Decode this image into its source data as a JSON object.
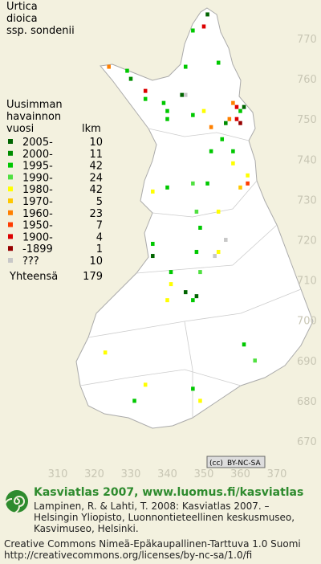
{
  "title": [
    "Urtica",
    "dioica",
    "ssp. sondenii"
  ],
  "legend": {
    "heading": [
      "Uusimman",
      "havainnon",
      "vuosi"
    ],
    "count_heading": "lkm",
    "rows": [
      {
        "label": "2005-",
        "count": 10,
        "color": "#006400",
        "squares": [
          [
            351,
            776
          ],
          [
            344,
            756
          ],
          [
            361,
            753
          ],
          [
            336,
            716
          ],
          [
            345,
            707
          ],
          [
            348,
            706
          ]
        ]
      },
      {
        "label": "2000-",
        "count": 11,
        "color": "#008c00",
        "squares": [
          [
            330,
            760
          ],
          [
            356,
            749
          ]
        ]
      },
      {
        "label": "1995-",
        "count": 42,
        "color": "#00c800",
        "squares": [
          [
            347,
            772
          ],
          [
            345,
            763
          ],
          [
            354,
            764
          ],
          [
            329,
            762
          ],
          [
            334,
            755
          ],
          [
            339,
            754
          ],
          [
            340,
            752
          ],
          [
            340,
            750
          ],
          [
            347,
            751
          ],
          [
            360,
            752
          ],
          [
            352,
            742
          ],
          [
            355,
            745
          ],
          [
            358,
            742
          ],
          [
            351,
            734
          ],
          [
            340,
            733
          ],
          [
            349,
            723
          ],
          [
            348,
            717
          ],
          [
            336,
            719
          ],
          [
            341,
            712
          ],
          [
            347,
            705
          ],
          [
            361,
            694
          ],
          [
            331,
            680
          ],
          [
            347,
            683
          ]
        ]
      },
      {
        "label": "1990-",
        "count": 24,
        "color": "#50e040",
        "squares": [
          [
            347,
            734
          ],
          [
            348,
            727
          ],
          [
            349,
            712
          ],
          [
            364,
            690
          ]
        ]
      },
      {
        "label": "1980-",
        "count": 42,
        "color": "#ffff00",
        "squares": [
          [
            350,
            752
          ],
          [
            358,
            739
          ],
          [
            362,
            736
          ],
          [
            336,
            732
          ],
          [
            354,
            727
          ],
          [
            354,
            717
          ],
          [
            341,
            709
          ],
          [
            340,
            705
          ],
          [
            323,
            692
          ],
          [
            334,
            684
          ],
          [
            349,
            680
          ]
        ]
      },
      {
        "label": "1970-",
        "count": 5,
        "color": "#ffc800",
        "squares": [
          [
            360,
            733
          ]
        ]
      },
      {
        "label": "1960-",
        "count": 23,
        "color": "#ff8000",
        "squares": [
          [
            324,
            763
          ],
          [
            358,
            754
          ],
          [
            357,
            750
          ],
          [
            352,
            748
          ]
        ]
      },
      {
        "label": "1950-",
        "count": 7,
        "color": "#ff3c00",
        "squares": [
          [
            362,
            734
          ]
        ]
      },
      {
        "label": "1900-",
        "count": 4,
        "color": "#dc0000",
        "squares": [
          [
            350,
            773
          ],
          [
            334,
            757
          ],
          [
            359,
            753
          ],
          [
            359,
            750
          ]
        ]
      },
      {
        "label": "-1899",
        "count": 1,
        "color": "#960000",
        "squares": [
          [
            360,
            749
          ]
        ]
      },
      {
        "label": "???",
        "count": 10,
        "color": "#c8c8c8",
        "squares": [
          [
            356,
            720
          ],
          [
            353,
            716
          ],
          [
            345,
            756
          ]
        ]
      }
    ],
    "total_label": "Yhteensä",
    "total": 179
  },
  "xticks": [
    310,
    320,
    330,
    340,
    350,
    360,
    370
  ],
  "yticks": [
    670,
    680,
    690,
    700,
    710,
    720,
    730,
    740,
    750,
    760,
    770
  ],
  "license_badge": [
    "(cc)",
    "BY-NC-SA"
  ],
  "footer": {
    "brand": "Kasviatlas 2007, www.luomus.fi/kasviatlas",
    "citation": [
      "Lampinen, R. & Lahti, T. 2008: Kasviatlas 2007. –",
      "Helsingin Yliopisto, Luonnontieteellinen keskusmuseo,",
      "Kasvimuseo, Helsinki."
    ],
    "license": [
      "Creative Commons Nimeä-Epäkaupallinen-Tarttuva 1.0 Suomi",
      "http://creativecommons.org/licenses/by-nc-sa/1.0/fi"
    ]
  }
}
